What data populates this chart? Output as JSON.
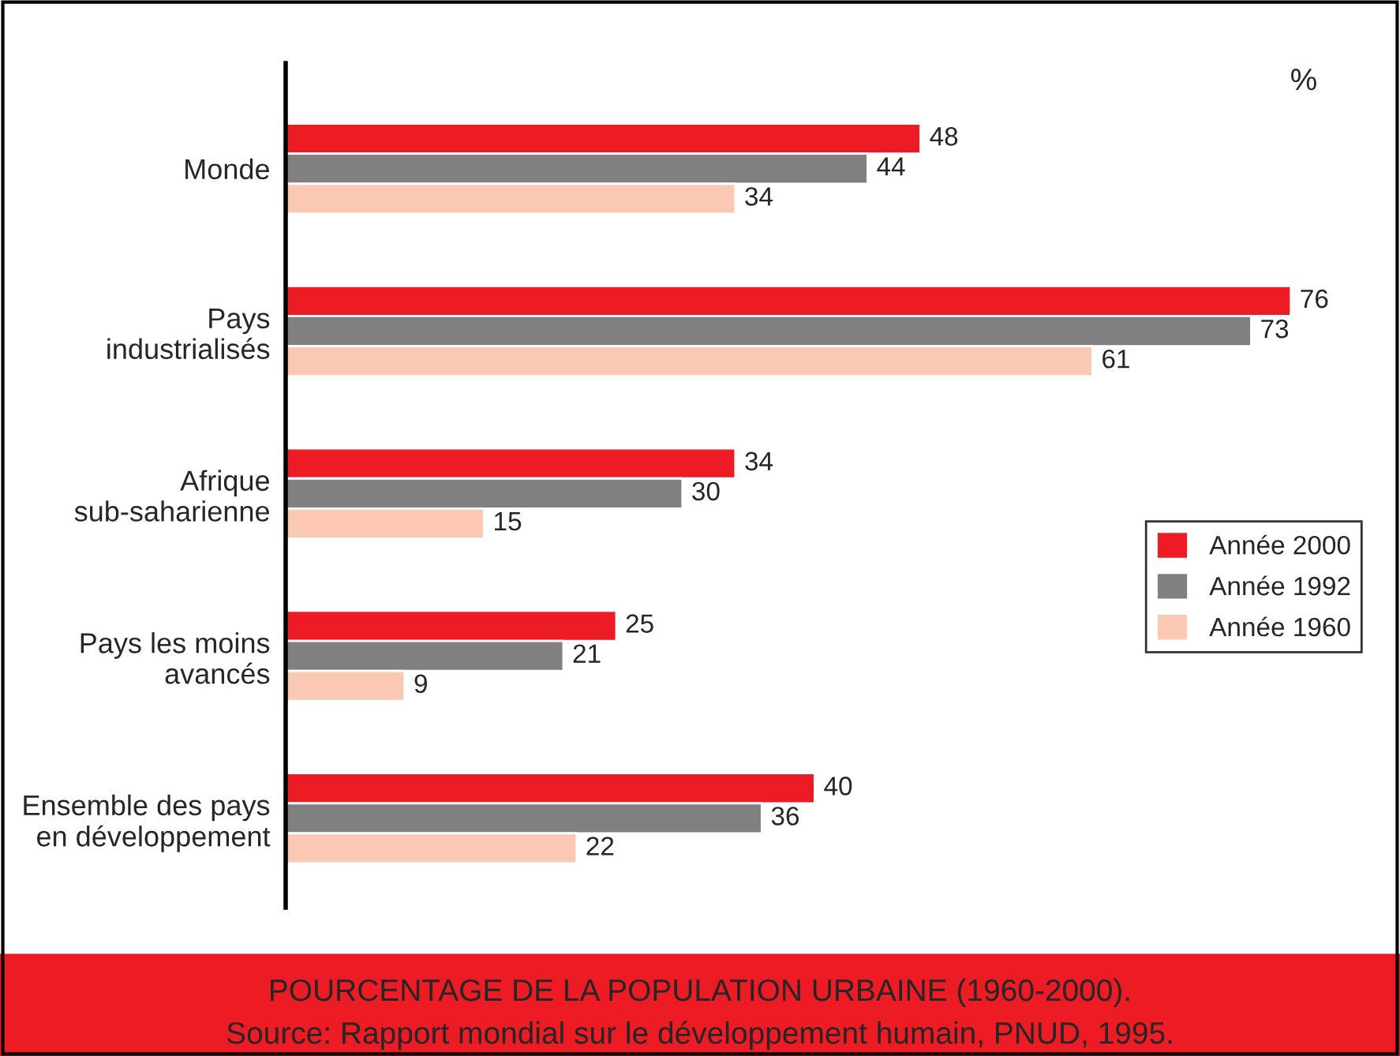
{
  "chart_data": {
    "type": "bar",
    "orientation": "horizontal",
    "title": "POURCENTAGE DE LA POPULATION URBAINE (1960-2000).",
    "annotations": [
      "%",
      "Source: Rapport mondial sur le développement humain, PNUD, 1995."
    ],
    "categories": [
      "Monde",
      "Pays\nindustrialisés",
      "Afrique\nsub-saharienne",
      "Pays les moins\navancés",
      "Ensemble des pays\nen développement"
    ],
    "series": [
      {
        "name": "Année 2000",
        "color": "#ed1c24",
        "values": [
          48,
          76,
          34,
          25,
          40
        ]
      },
      {
        "name": "Année 1992",
        "color": "#808080",
        "values": [
          44,
          73,
          30,
          21,
          36
        ]
      },
      {
        "name": "Année 1960",
        "color": "#fbc8b4",
        "values": [
          34,
          61,
          15,
          9,
          22
        ]
      }
    ],
    "data_labels": true,
    "tick_labels": "y",
    "legend": "right",
    "grid": false
  }
}
